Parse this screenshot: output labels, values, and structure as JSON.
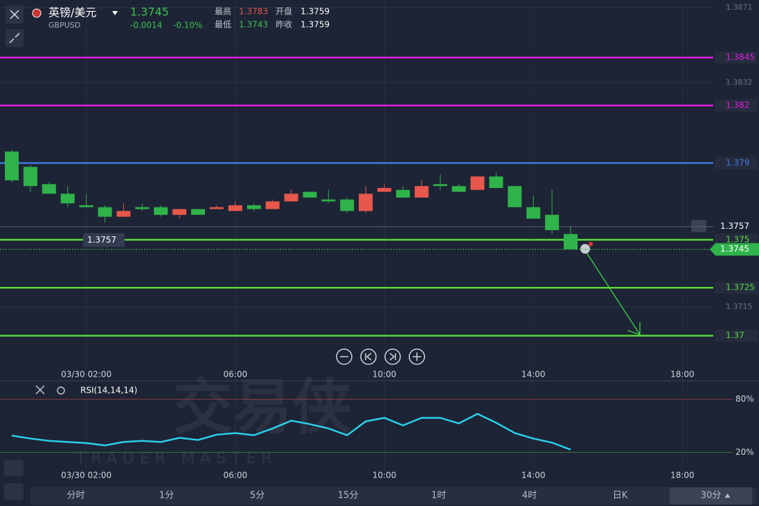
{
  "header": {
    "name": "英镑/美元",
    "code": "GBPUSD",
    "price": "1.3745",
    "change": "-0.0014",
    "change_pct": "-0.10%",
    "high_label": "最高",
    "high": "1.3783",
    "open_label": "开盘",
    "open": "1.3759",
    "low_label": "最低",
    "low": "1.3743",
    "prev_label": "昨收",
    "prev": "1.3759"
  },
  "watermark": {
    "cn": "交易侠",
    "en": "TRADER MASTER"
  },
  "chart_data": [
    {
      "type": "candlestick",
      "x_labels": [
        "03/30 02:00",
        "06:00",
        "10:00",
        "14:00",
        "18:00"
      ],
      "open": [
        1.3796,
        1.3788,
        1.3779,
        1.3774,
        1.3768,
        1.3767,
        1.3762,
        1.3767,
        1.3767,
        1.3763,
        1.3766,
        1.3766,
        1.3765,
        1.3768,
        1.3766,
        1.377,
        1.3775,
        1.3771,
        1.3771,
        1.3765,
        1.3775,
        1.3776,
        1.3772,
        1.3779,
        1.3778,
        1.3776,
        1.3783,
        1.3778,
        1.3767,
        1.3763,
        1.3753
      ],
      "high": [
        1.3797,
        1.3789,
        1.378,
        1.3778,
        1.3774,
        1.3768,
        1.3769,
        1.3769,
        1.3768,
        1.3766,
        1.3766,
        1.3768,
        1.377,
        1.3769,
        1.3771,
        1.3776,
        1.3775,
        1.3776,
        1.3772,
        1.3778,
        1.3779,
        1.3778,
        1.3781,
        1.3784,
        1.3779,
        1.3783,
        1.3785,
        1.3778,
        1.3773,
        1.3776,
        1.3757
      ],
      "low": [
        1.378,
        1.3775,
        1.3774,
        1.3767,
        1.3767,
        1.3759,
        1.3762,
        1.3765,
        1.3762,
        1.3761,
        1.3763,
        1.3766,
        1.3765,
        1.3765,
        1.3766,
        1.377,
        1.3772,
        1.3769,
        1.3764,
        1.3764,
        1.3775,
        1.3772,
        1.3772,
        1.3776,
        1.3775,
        1.3776,
        1.3777,
        1.3767,
        1.3761,
        1.3753,
        1.3745
      ],
      "close": [
        1.3781,
        1.3778,
        1.3774,
        1.3769,
        1.3767,
        1.3762,
        1.3765,
        1.3766,
        1.3763,
        1.3766,
        1.3763,
        1.3767,
        1.3768,
        1.3766,
        1.377,
        1.3774,
        1.3772,
        1.377,
        1.3765,
        1.3774,
        1.3777,
        1.3772,
        1.3778,
        1.3778,
        1.3775,
        1.3783,
        1.3777,
        1.3767,
        1.3761,
        1.3755,
        1.3745
      ],
      "up_color": "#e8574c",
      "down_color": "#2fb34a",
      "ylim": [
        1.3684,
        1.3875
      ],
      "yticks": [
        1.3715,
        1.3832,
        1.3871
      ],
      "levels": [
        {
          "value": 1.3845,
          "color": "#e01ee0"
        },
        {
          "value": 1.382,
          "color": "#e01ee0"
        },
        {
          "value": 1.379,
          "color": "#3f7be0"
        },
        {
          "value": 1.375,
          "color": "#5ad83a"
        },
        {
          "value": 1.3725,
          "color": "#5ad83a"
        },
        {
          "value": 1.37,
          "color": "#5ad83a"
        }
      ],
      "crosshair": 1.3757,
      "current": 1.3745
    },
    {
      "type": "line",
      "title": "RSI(14,14,14)",
      "color": "#2bd0ea",
      "values": [
        39,
        35.6,
        33,
        31.7,
        30.5,
        27.8,
        31.7,
        33,
        31.7,
        36.4,
        34,
        40,
        41.8,
        39.4,
        47,
        55.8,
        51.9,
        47,
        39.4,
        55,
        59,
        50.5,
        59,
        59,
        52.7,
        63.6,
        53.5,
        41.8,
        35.6,
        31,
        23.1
      ],
      "ylim": [
        0,
        100
      ],
      "yticks": [
        {
          "value": 80,
          "label": "80%"
        },
        {
          "value": 20,
          "label": "20%"
        }
      ]
    }
  ],
  "tabs": [
    "分时",
    "1分",
    "5分",
    "15分",
    "1时",
    "4时",
    "日K",
    "30分"
  ]
}
